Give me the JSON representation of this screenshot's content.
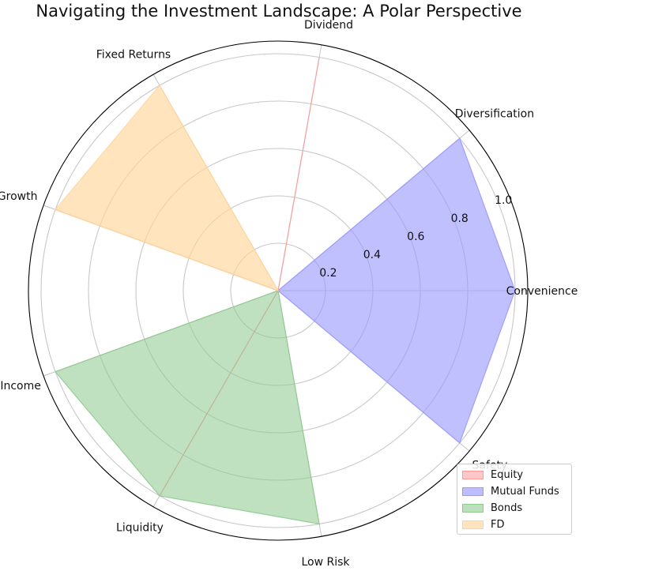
{
  "chart_data": {
    "type": "polar-area",
    "title": "Navigating the Investment Landscape: A Polar Perspective",
    "categories": [
      "Convenience",
      "Diversification",
      "Dividend",
      "Fixed Returns",
      "Growth",
      "Income",
      "Liquidity",
      "Low Risk",
      "Safety"
    ],
    "radial_ticks": [
      "0.2",
      "0.4",
      "0.6",
      "0.8",
      "1.0"
    ],
    "radial_max": 1.0,
    "series": [
      {
        "name": "Equity",
        "color": "#ff9999",
        "values": [
          0,
          0,
          1.0,
          0,
          1.0,
          0,
          1.0,
          0,
          0
        ]
      },
      {
        "name": "Mutual Funds",
        "color": "#9999ff",
        "values": [
          1.0,
          1.0,
          0,
          0,
          0,
          0,
          0,
          0,
          1.0
        ]
      },
      {
        "name": "Bonds",
        "color": "#8fc98f",
        "values": [
          0,
          0,
          0,
          0,
          0,
          1.0,
          1.0,
          1.0,
          0
        ]
      },
      {
        "name": "FD",
        "color": "#ffd699",
        "values": [
          0,
          0,
          0,
          1.0,
          1.0,
          0,
          0,
          0,
          0
        ]
      }
    ],
    "legend_position": "bottom-right",
    "grid": true
  }
}
